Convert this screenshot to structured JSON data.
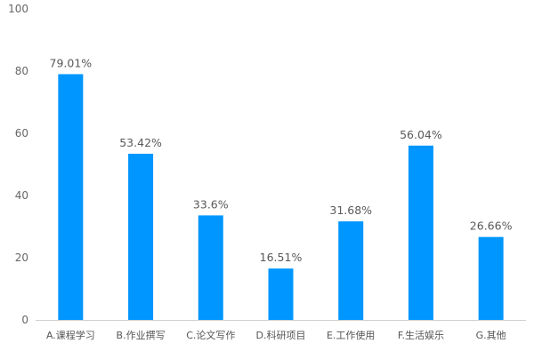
{
  "chart_data": {
    "type": "bar",
    "categories": [
      "A.课程学习",
      "B.作业撰写",
      "C.论文写作",
      "D.科研项目",
      "E.工作使用",
      "F.生活娱乐",
      "G.其他"
    ],
    "values": [
      79.01,
      53.42,
      33.6,
      16.51,
      31.68,
      56.04,
      26.66
    ],
    "data_labels": [
      "79.01%",
      "53.42%",
      "33.6%",
      "16.51%",
      "31.68%",
      "56.04%",
      "26.66%"
    ],
    "y_ticks": [
      "0",
      "20",
      "40",
      "60",
      "80",
      "100"
    ],
    "ylim": [
      0,
      100
    ],
    "grid": false,
    "bar_color": "#0096FF",
    "axis_color": "#CFCFCF"
  }
}
